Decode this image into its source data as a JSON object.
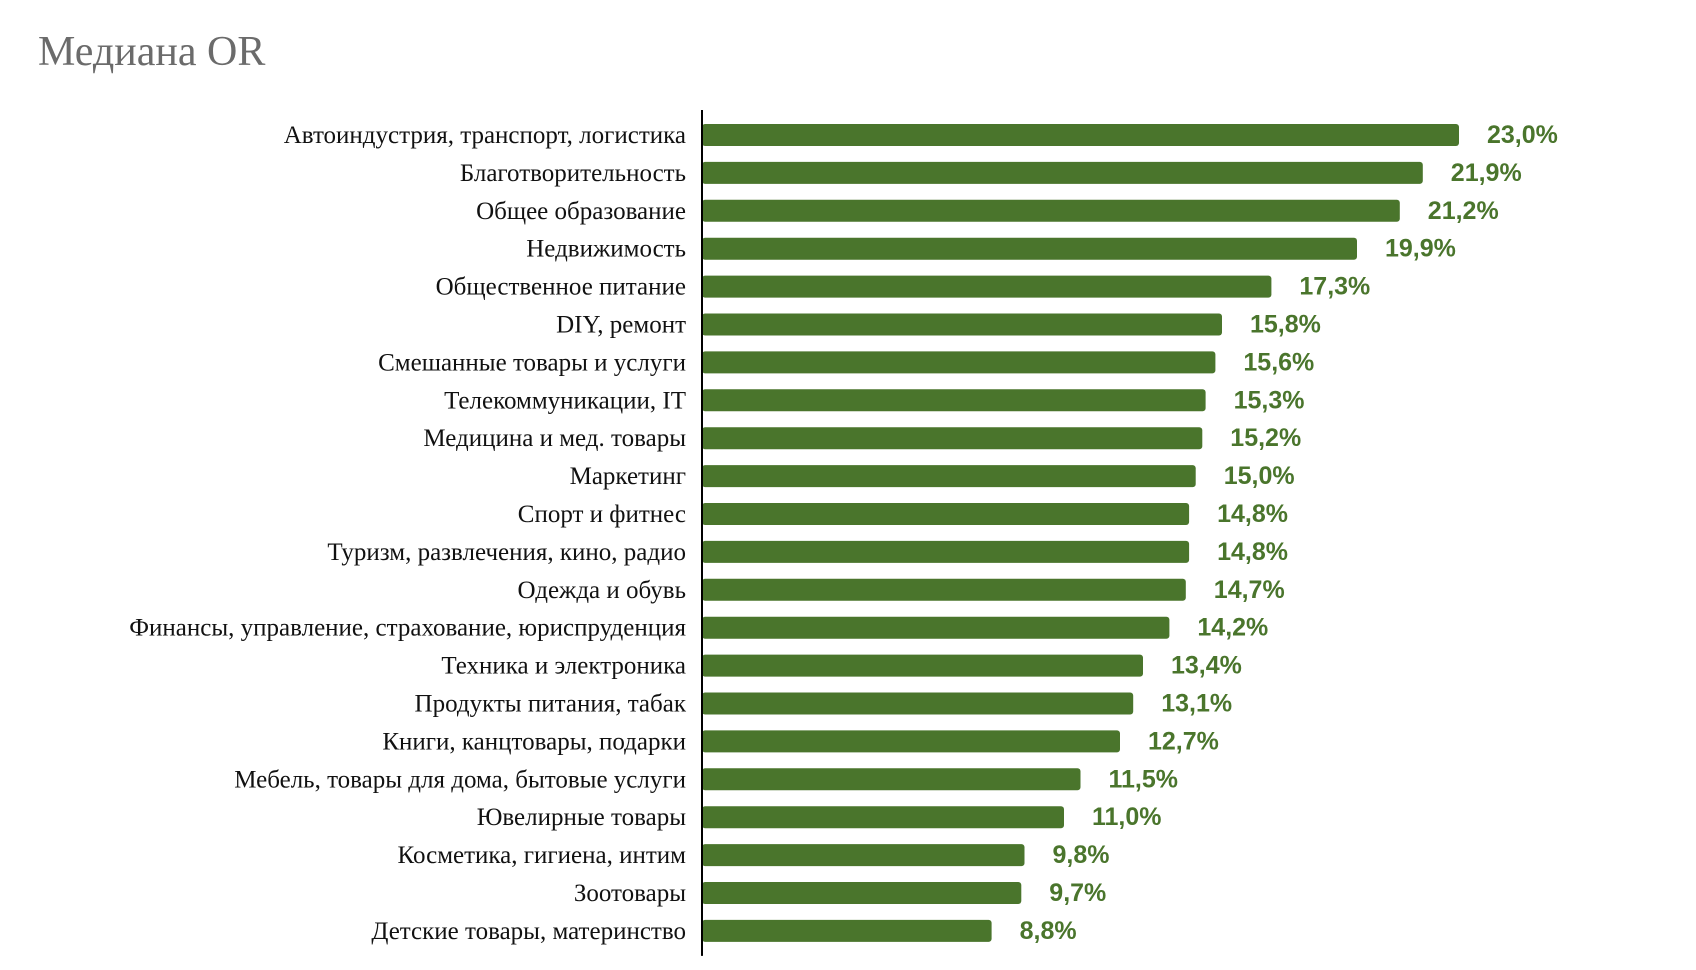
{
  "chart_data": {
    "type": "bar",
    "orientation": "horizontal",
    "title": "Медиана OR",
    "categories": [
      "Автоиндустрия, транспорт, логистика",
      "Благотворительность",
      "Общее образование",
      "Недвижимость",
      "Общественное питание",
      "DIY, ремонт",
      "Смешанные товары и услуги",
      "Телекоммуникации, IT",
      "Медицина и мед. товары",
      "Маркетинг",
      "Спорт и фитнес",
      "Туризм, развлечения, кино, радио",
      "Одежда и обувь",
      "Финансы, управление, страхование, юриспруденция",
      "Техника и электроника",
      "Продукты питания, табак",
      "Книги, канцтовары, подарки",
      "Мебель, товары для дома, бытовые услуги",
      "Ювелирные товары",
      "Косметика, гигиена, интим",
      "Зоотовары",
      "Детские товары, материнство"
    ],
    "values": [
      23.0,
      21.9,
      21.2,
      19.9,
      17.3,
      15.8,
      15.6,
      15.3,
      15.2,
      15.0,
      14.8,
      14.8,
      14.7,
      14.2,
      13.4,
      13.1,
      12.7,
      11.5,
      11.0,
      9.8,
      9.7,
      8.8
    ],
    "value_labels": [
      "23,0%",
      "21,9%",
      "21,2%",
      "19,9%",
      "17,3%",
      "15,8%",
      "15,6%",
      "15,3%",
      "15,2%",
      "15,0%",
      "14,8%",
      "14,8%",
      "14,7%",
      "14,2%",
      "13,4%",
      "13,1%",
      "12,7%",
      "11,5%",
      "11,0%",
      "9,8%",
      "9,7%",
      "8,8%"
    ],
    "xlim": [
      0,
      23.0
    ],
    "grid": false,
    "legend": "none",
    "colors": {
      "bar": "#4a752c",
      "value_label": "#4a752c",
      "axis": "#000000",
      "title": "#6b6b6b"
    }
  }
}
